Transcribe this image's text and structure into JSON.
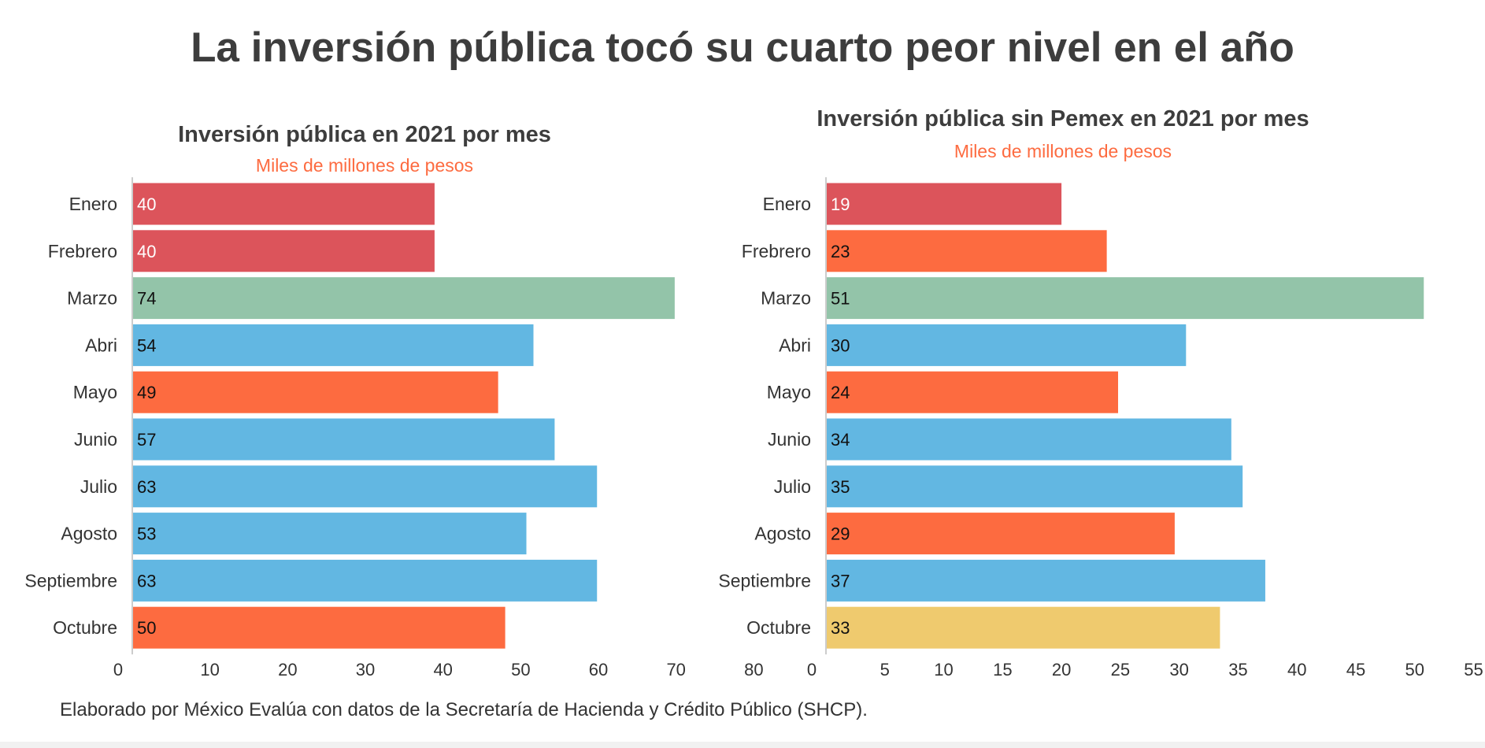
{
  "title": "La inversión pública tocó su cuarto peor nivel en el año",
  "source": "Elaborado por México Evalúa con datos de la Secretaría de Hacienda y Crédito Público (SHCP).",
  "colors": {
    "red": "#dc545b",
    "orange": "#fd6b40",
    "green": "#93c4a9",
    "blue": "#62b7e2",
    "yellow": "#efca6e",
    "subtitle": "#fd6b40",
    "axis": "#cccccc"
  },
  "chart_data": [
    {
      "type": "bar",
      "orientation": "horizontal",
      "title": "Inversión pública en 2021 por mes",
      "subtitle": "Miles de millones de pesos",
      "categories": [
        "Enero",
        "Frebrero",
        "Marzo",
        "Abri",
        "Mayo",
        "Junio",
        "Julio",
        "Agosto",
        "Septiembre",
        "Octubre"
      ],
      "values": [
        40,
        40,
        74,
        54,
        49,
        57,
        63,
        53,
        63,
        50
      ],
      "bar_colors": [
        "red",
        "red",
        "green",
        "blue",
        "orange",
        "blue",
        "blue",
        "blue",
        "blue",
        "orange"
      ],
      "label_colors": [
        "#ffffff",
        "#ffffff",
        "#111111",
        "#111111",
        "#111111",
        "#111111",
        "#111111",
        "#111111",
        "#111111",
        "#111111"
      ],
      "xlim": [
        0,
        80
      ],
      "xticks": [
        0,
        10,
        20,
        30,
        40,
        50,
        60,
        70,
        80
      ],
      "xlabel": "",
      "ylabel": ""
    },
    {
      "type": "bar",
      "orientation": "horizontal",
      "title": "Inversión pública sin Pemex en 2021 por mes",
      "subtitle": "Miles de millones de pesos",
      "categories": [
        "Enero",
        "Frebrero",
        "Marzo",
        "Abri",
        "Mayo",
        "Junio",
        "Julio",
        "Agosto",
        "Septiembre",
        "Octubre"
      ],
      "values": [
        19,
        23,
        51,
        30,
        24,
        34,
        35,
        29,
        37,
        33
      ],
      "bar_colors": [
        "red",
        "orange",
        "green",
        "blue",
        "orange",
        "blue",
        "blue",
        "orange",
        "blue",
        "yellow"
      ],
      "label_colors": [
        "#ffffff",
        "#111111",
        "#111111",
        "#111111",
        "#111111",
        "#111111",
        "#111111",
        "#111111",
        "#111111",
        "#111111"
      ],
      "xlim": [
        0,
        55
      ],
      "xticks": [
        0,
        5,
        10,
        15,
        20,
        25,
        30,
        35,
        40,
        45,
        50,
        55
      ],
      "xlabel": "",
      "ylabel": ""
    }
  ]
}
